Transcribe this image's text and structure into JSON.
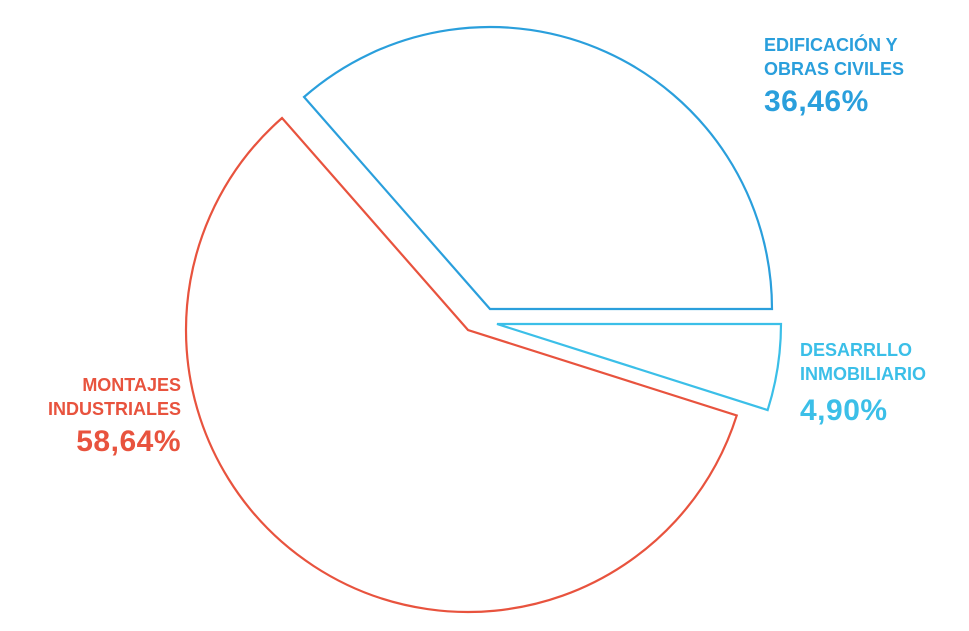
{
  "chart_data": {
    "type": "pie",
    "style": "exploded-outline",
    "start": "3 o'clock, counter-clockwise",
    "slices": [
      {
        "label_line1": "EDIFICACIÓN Y",
        "label_line2": "OBRAS CIVILES",
        "value": 36.46,
        "display": "36,46%",
        "color": "#2a9fdc"
      },
      {
        "label_line1": "MONTAJES",
        "label_line2": "INDUSTRIALES",
        "value": 58.64,
        "display": "58,64%",
        "color": "#e8533e"
      },
      {
        "label_line1": "DESARRLLO",
        "label_line2": "INMOBILIARIO",
        "value": 4.9,
        "display": "4,90%",
        "color": "#3bbfe8"
      }
    ]
  }
}
